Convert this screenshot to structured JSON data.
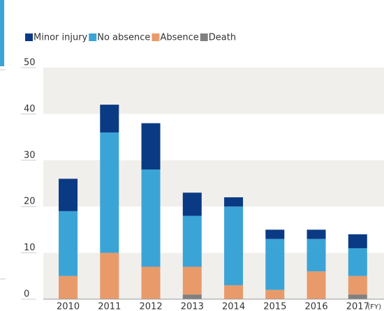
{
  "chart_data": {
    "type": "stacked_bar",
    "categories": [
      "2010",
      "2011",
      "2012",
      "2013",
      "2014",
      "2015",
      "2016",
      "2017"
    ],
    "x_unit": "(FY)",
    "series": [
      {
        "name": "Minor injury",
        "color": "#0b3a84",
        "values": [
          7,
          6,
          10,
          5,
          2,
          2,
          2,
          3
        ]
      },
      {
        "name": "No absence",
        "color": "#3ba4d6",
        "values": [
          14,
          26,
          21,
          11,
          17,
          11,
          7,
          6
        ]
      },
      {
        "name": "Absence",
        "color": "#e99a6a",
        "values": [
          5,
          10,
          7,
          6,
          3,
          2,
          6,
          4
        ]
      },
      {
        "name": "Death",
        "color": "#808080",
        "values": [
          0,
          0,
          0,
          1,
          0,
          0,
          0,
          1
        ]
      }
    ],
    "ylim": [
      0,
      50
    ],
    "yticks": [
      0,
      10,
      20,
      30,
      40,
      50
    ],
    "grid": true
  }
}
